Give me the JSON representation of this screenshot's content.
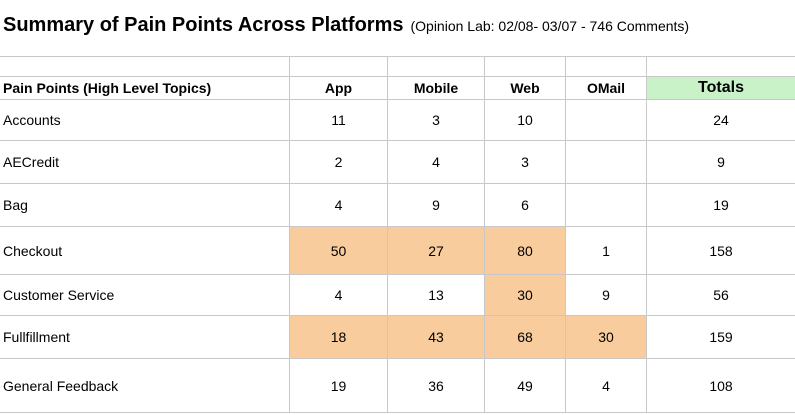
{
  "title": "Summary of Pain Points Across Platforms",
  "subtitle": "(Opinion Lab: 02/08- 03/07 - 746 Comments)",
  "colors": {
    "highlight": "#f8cc9c",
    "totals_header": "#c9f2c9",
    "grid": "#c8c8c8"
  },
  "columns": [
    "Pain Points (High Level Topics)",
    "App",
    "Mobile",
    "Web",
    "OMail",
    "Totals"
  ],
  "rows": [
    {
      "topic": "Accounts",
      "app": "11",
      "mobile": "3",
      "web": "10",
      "omail": "",
      "total": "24"
    },
    {
      "topic": "AECredit",
      "app": "2",
      "mobile": "4",
      "web": "3",
      "omail": "",
      "total": "9"
    },
    {
      "topic": "Bag",
      "app": "4",
      "mobile": "9",
      "web": "6",
      "omail": "",
      "total": "19"
    },
    {
      "topic": "Checkout",
      "app": "50",
      "mobile": "27",
      "web": "80",
      "omail": "1",
      "total": "158"
    },
    {
      "topic": "Customer Service",
      "app": "4",
      "mobile": "13",
      "web": "30",
      "omail": "9",
      "total": "56"
    },
    {
      "topic": "Fullfillment",
      "app": "18",
      "mobile": "43",
      "web": "68",
      "omail": "30",
      "total": "159"
    },
    {
      "topic": "General Feedback",
      "app": "19",
      "mobile": "36",
      "web": "49",
      "omail": "4",
      "total": "108"
    }
  ],
  "highlighted_cells": [
    {
      "topic": "Checkout",
      "columns": [
        "App",
        "Mobile",
        "Web"
      ]
    },
    {
      "topic": "Customer Service",
      "columns": [
        "Web"
      ]
    },
    {
      "topic": "Fullfillment",
      "columns": [
        "App",
        "Mobile",
        "Web",
        "OMail"
      ]
    }
  ]
}
